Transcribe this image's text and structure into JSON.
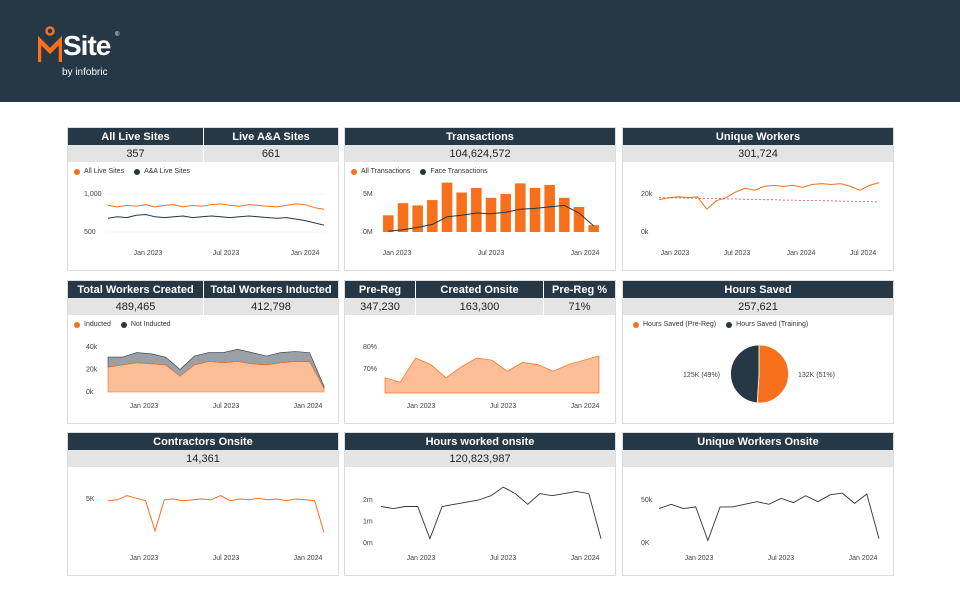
{
  "brand": {
    "word": "Site",
    "reg": "®",
    "byline": "by infobric"
  },
  "colors": {
    "orange": "#f7711c",
    "navy": "#263746",
    "gray": "#9aa0a6",
    "peach": "#fdbd96"
  },
  "panels": {
    "live_sites": {
      "headers": [
        "All Live Sites",
        "Live A&A Sites"
      ],
      "values": [
        "357",
        "661"
      ],
      "legend": [
        "All Live Sites",
        "A&A Live Sites"
      ],
      "chart_data": {
        "type": "line",
        "y_ticks": [
          "1,000",
          "500"
        ],
        "x_ticks": [
          "Jan 2023",
          "Jul 2023",
          "Jan 2024"
        ],
        "series": [
          {
            "name": "All Live Sites",
            "values": [
              850,
              830,
              850,
              840,
              860,
              830,
              850,
              860,
              830,
              850,
              840,
              860,
              870,
              850,
              840,
              860,
              850,
              840,
              830,
              850,
              870,
              860,
              820,
              800
            ]
          },
          {
            "name": "A&A Live Sites",
            "values": [
              680,
              700,
              690,
              720,
              730,
              700,
              690,
              700,
              710,
              690,
              700,
              710,
              700,
              690,
              700,
              710,
              700,
              690,
              680,
              690,
              670,
              650,
              620,
              590
            ]
          }
        ]
      }
    },
    "transactions": {
      "header": "Transactions",
      "value": "104,624,572",
      "legend": [
        "All Transactions",
        "Face Transactions"
      ],
      "chart_data": {
        "type": "bar",
        "y_ticks": [
          "5M",
          "0M"
        ],
        "x_ticks": [
          "Jan 2023",
          "Jul 2023",
          "Jan 2024"
        ],
        "series": [
          {
            "name": "All Transactions",
            "values": [
              2.2,
              3.8,
              3.5,
              4.2,
              6.5,
              5.2,
              5.8,
              4.5,
              5.0,
              6.4,
              5.8,
              6.2,
              4.5,
              3.3,
              0.9
            ]
          },
          {
            "name": "Face Transactions",
            "values": [
              0.1,
              0.3,
              0.6,
              1.0,
              2.0,
              2.2,
              2.5,
              2.4,
              2.6,
              3.0,
              3.1,
              3.3,
              3.5,
              2.5,
              0.8
            ]
          }
        ]
      }
    },
    "unique_workers": {
      "header": "Unique Workers",
      "value": "301,724",
      "chart_data": {
        "type": "line",
        "y_ticks": [
          "20k",
          "0k"
        ],
        "x_ticks": [
          "Jan 2023",
          "Jul 2023",
          "Jan 2024",
          "Jul 2024"
        ],
        "series": [
          {
            "name": "",
            "values": [
              17000,
              18000,
              18500,
              18000,
              18500,
              12000,
              16500,
              18000,
              21000,
              23000,
              22000,
              24000,
              24500,
              24000,
              24500,
              23500,
              25000,
              25500,
              25000,
              25500,
              24000,
              22000,
              24500,
              26000
            ]
          },
          {
            "name": "",
            "values": [
              18000,
              18000,
              18000,
              17800,
              17800,
              17600,
              17600,
              17400,
              17400,
              17200,
              17200,
              17000,
              17000,
              16800,
              16800,
              16600,
              16600,
              16400,
              16400,
              16200,
              16200,
              16000,
              16000,
              15800
            ]
          }
        ]
      }
    },
    "workers_created": {
      "headers": [
        "Total Workers Created",
        "Total Workers Inducted"
      ],
      "values": [
        "489,465",
        "412,798"
      ],
      "legend": [
        "Inducted",
        "Not Inducted"
      ],
      "chart_data": {
        "type": "area",
        "y_ticks": [
          "40k",
          "20k",
          "0k"
        ],
        "x_ticks": [
          "Jan 2023",
          "Jul 2023",
          "Jan 2024"
        ],
        "series": [
          {
            "name": "Inducted",
            "values": [
              22000,
              24000,
              26000,
              25000,
              24000,
              14000,
              24000,
              27000,
              26000,
              27000,
              25000,
              24000,
              26000,
              27000,
              27000,
              3000
            ]
          },
          {
            "name": "Not Inducted",
            "values": [
              9000,
              7000,
              9000,
              9000,
              7000,
              6000,
              8000,
              8000,
              9000,
              11000,
              10000,
              8000,
              9000,
              9000,
              8000,
              2000
            ]
          }
        ]
      }
    },
    "prereg": {
      "headers": [
        "Pre-Reg",
        "Created Onsite",
        "Pre-Reg %"
      ],
      "values": [
        "347,230",
        "163,300",
        "71%"
      ],
      "chart_data": {
        "type": "area",
        "y_ticks": [
          "80%",
          "70%"
        ],
        "x_ticks": [
          "Jan 2023",
          "Jul 2023",
          "Jan 2024"
        ],
        "series": [
          {
            "name": "Pre-Reg %",
            "values": [
              66,
              64,
              75,
              72,
              66,
              71,
              75,
              74,
              69,
              73,
              72,
              69,
              72,
              74,
              76
            ]
          }
        ]
      }
    },
    "hours_saved": {
      "header": "Hours Saved",
      "value": "257,621",
      "legend": [
        "Hours Saved (Pre-Reg)",
        "Hours Saved (Training)"
      ],
      "chart_data": {
        "type": "pie",
        "series": [
          {
            "name": "Hours Saved (Pre-Reg)",
            "label": "132K (51%)",
            "value": 51
          },
          {
            "name": "Hours Saved (Training)",
            "label": "125K (49%)",
            "value": 49
          }
        ]
      }
    },
    "contractors": {
      "header": "Contractors Onsite",
      "value": "14,361",
      "chart_data": {
        "type": "line",
        "y_ticks": [
          "5K"
        ],
        "x_ticks": [
          "Jan 2023",
          "Jul 2023",
          "Jan 2024"
        ],
        "series": [
          {
            "name": "",
            "values": [
              4800,
              4900,
              5400,
              5100,
              4800,
              1200,
              4900,
              5000,
              4800,
              4900,
              5000,
              4900,
              5400,
              4800,
              5000,
              4900,
              5100,
              4900,
              5000,
              4800,
              5000,
              4900,
              4800,
              1000
            ]
          }
        ]
      }
    },
    "hours_worked": {
      "header": "Hours worked onsite",
      "value": "120,823,987",
      "chart_data": {
        "type": "line",
        "y_ticks": [
          "2m",
          "1m",
          "0m"
        ],
        "x_ticks": [
          "Jan 2023",
          "Jul 2023",
          "Jan 2024"
        ],
        "series": [
          {
            "name": "",
            "values": [
              1.7,
              1.6,
              1.7,
              1.7,
              0.2,
              1.7,
              1.8,
              1.9,
              2.0,
              2.2,
              2.6,
              2.3,
              1.8,
              2.3,
              2.2,
              2.3,
              2.4,
              2.3,
              0.2
            ]
          }
        ]
      }
    },
    "unique_onsite": {
      "header": "Unique Workers Onsite",
      "value": "",
      "chart_data": {
        "type": "line",
        "y_ticks": [
          "50k",
          "0K"
        ],
        "x_ticks": [
          "Jan 2023",
          "Jul 2023",
          "Jan 2024"
        ],
        "series": [
          {
            "name": "",
            "values": [
              40000,
              45000,
              40000,
              42000,
              3000,
              42000,
              42000,
              45000,
              48000,
              45000,
              52000,
              47000,
              55000,
              48000,
              56000,
              58000,
              46000,
              57000,
              5000
            ]
          }
        ]
      }
    }
  }
}
